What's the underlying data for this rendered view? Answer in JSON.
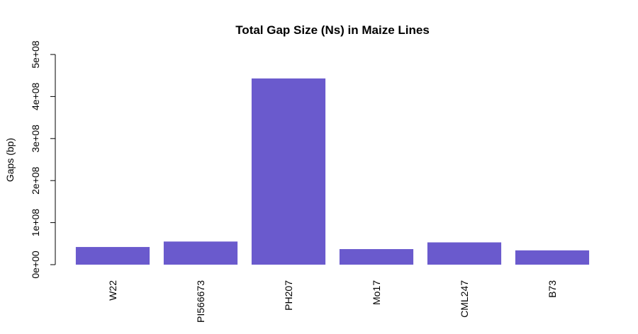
{
  "chart_data": {
    "type": "bar",
    "title": "Total Gap Size (Ns) in Maize Lines",
    "xlabel": "",
    "ylabel": "Gaps (bp)",
    "categories": [
      "W22",
      "PI566673",
      "PH207",
      "Mo17",
      "CML247",
      "B73"
    ],
    "values": [
      42000000,
      55000000,
      443000000,
      37000000,
      53000000,
      34000000
    ],
    "ylim": [
      0,
      500000000
    ],
    "yticks": [
      0,
      100000000,
      200000000,
      300000000,
      400000000,
      500000000
    ],
    "ytick_labels": [
      "0e+00",
      "1e+08",
      "2e+08",
      "3e+08",
      "4e+08",
      "5e+08"
    ],
    "bar_color": "#6A5ACD",
    "grid": false,
    "legend": "none"
  }
}
